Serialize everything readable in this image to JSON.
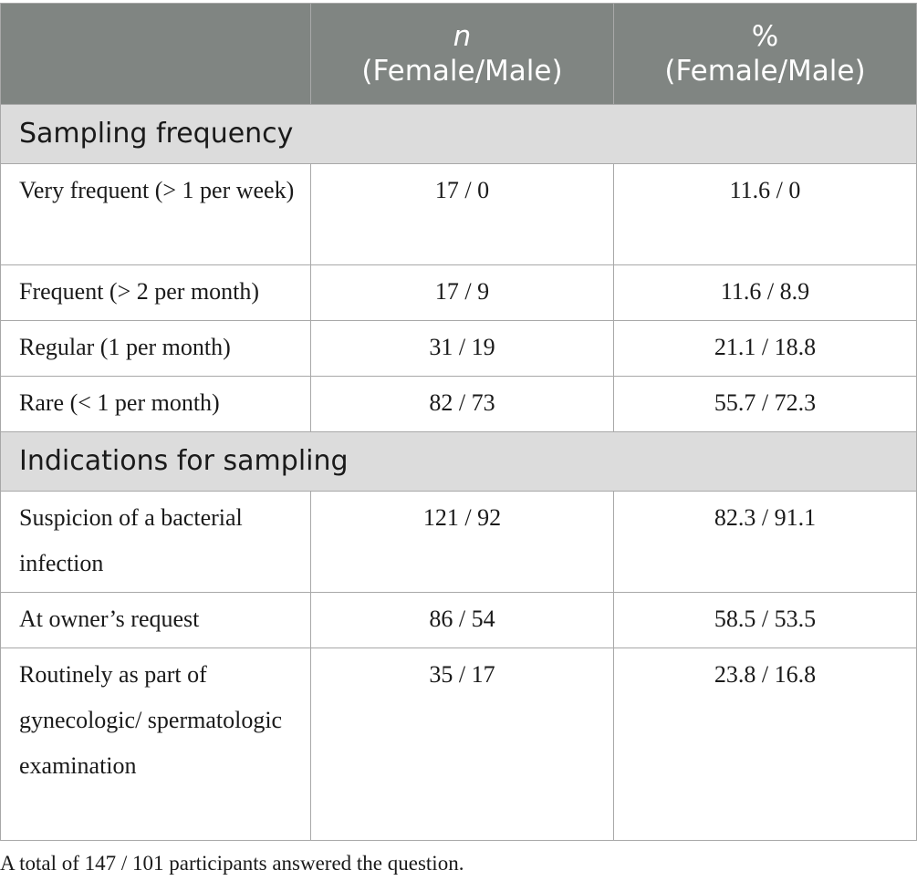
{
  "header": {
    "col1": "",
    "col2_line1": "n",
    "col2_line2": "(Female/Male)",
    "col3_line1": "%",
    "col3_line2": "(Female/Male)"
  },
  "sections": [
    {
      "title": "Sampling frequency",
      "rows": [
        {
          "label": "Very frequent (> 1 per week)",
          "n": "17 / 0",
          "pct": "11.6 / 0"
        },
        {
          "label": "Frequent (> 2 per month)",
          "n": "17 / 9",
          "pct": "11.6 / 8.9"
        },
        {
          "label": "Regular (1 per month)",
          "n": "31 / 19",
          "pct": "21.1 / 18.8"
        },
        {
          "label": "Rare (< 1 per month)",
          "n": "82 / 73",
          "pct": "55.7 / 72.3"
        }
      ]
    },
    {
      "title": "Indications for sampling",
      "rows": [
        {
          "label": "Suspicion of a bacterial infection",
          "n": "121 / 92",
          "pct": "82.3 / 91.1"
        },
        {
          "label": "At owner’s request",
          "n": "86 / 54",
          "pct": "58.5 / 53.5"
        },
        {
          "label": "Routinely as part of gynecologic/ spermatologic examination",
          "n": "35 / 17",
          "pct": "23.8 / 16.8"
        }
      ]
    }
  ],
  "footnote": "A total of 147 / 101 participants answered the question."
}
